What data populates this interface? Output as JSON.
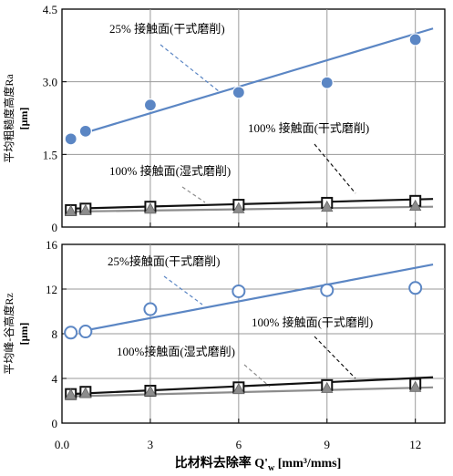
{
  "figure": {
    "xlabel": "比材料去除率  Q'w [mm³/mms]",
    "xlabel_main": "比材料去除率  Q'",
    "xlabel_sub": "w",
    "xlabel_unit": " [mm³/mms]"
  },
  "colors": {
    "blue": "#5b86c4",
    "black": "#111111",
    "gray": "#8c8c8c"
  },
  "chart_data": [
    {
      "type": "line",
      "panel": "top",
      "ylabel": "平均粗糙度高度Ra [μm]",
      "ylabel_text": "平均粗糙度高度Ra",
      "ylabel_unit": "[μm]",
      "xlim": [
        0,
        13
      ],
      "ylim": [
        0,
        4.5
      ],
      "xticks": [
        0,
        3,
        6,
        9,
        12
      ],
      "xtick_labels": [
        "0.0",
        "3",
        "6",
        "9",
        "12"
      ],
      "yticks": [
        0,
        1.5,
        3.0,
        4.5
      ],
      "ytick_labels": [
        "0",
        "1.5",
        "3.0",
        "4.5"
      ],
      "grid": true,
      "series": [
        {
          "name": "25% 接触面(干式磨削)",
          "marker": "circle-filled",
          "color": "blue",
          "x": [
            0.3,
            0.8,
            3,
            6,
            9,
            12
          ],
          "y": [
            1.82,
            1.98,
            2.52,
            2.78,
            2.98,
            3.87
          ],
          "fit": [
            [
              0.8,
              1.95
            ],
            [
              12.6,
              4.1
            ]
          ]
        },
        {
          "name": "100% 接触面(干式磨削)",
          "marker": "square",
          "color": "black",
          "x": [
            0.3,
            0.8,
            3,
            6,
            9,
            12
          ],
          "y": [
            0.35,
            0.38,
            0.42,
            0.46,
            0.5,
            0.54
          ],
          "fit": [
            [
              0.3,
              0.38
            ],
            [
              12.6,
              0.58
            ]
          ]
        },
        {
          "name": "100% 接触面(湿式磨削)",
          "marker": "triangle",
          "color": "gray",
          "x": [
            0.3,
            0.8,
            3,
            6,
            9,
            12
          ],
          "y": [
            0.32,
            0.34,
            0.37,
            0.38,
            0.41,
            0.43
          ],
          "fit": [
            [
              0.3,
              0.32
            ],
            [
              12.6,
              0.42
            ]
          ]
        }
      ],
      "annotations": [
        {
          "text": "25% 接触面(干式磨削)",
          "series": 0
        },
        {
          "text": "100% 接触面(干式磨削)",
          "series": 1
        },
        {
          "text": "100% 接触面(湿式磨削)",
          "series": 2
        }
      ]
    },
    {
      "type": "line",
      "panel": "bottom",
      "ylabel": "平均峰-谷高度Rz [μm]",
      "ylabel_text": "平均峰-谷高度Rz",
      "ylabel_unit": "[μm]",
      "xlim": [
        0,
        13
      ],
      "ylim": [
        0,
        16
      ],
      "xticks": [
        0,
        3,
        6,
        9,
        12
      ],
      "xtick_labels": [
        "0.0",
        "3",
        "6",
        "9",
        "12"
      ],
      "yticks": [
        0,
        4,
        8,
        12,
        16
      ],
      "ytick_labels": [
        "0",
        "4",
        "8",
        "12",
        "16"
      ],
      "grid": true,
      "series": [
        {
          "name": "25%接触面(干式磨削)",
          "marker": "circle-open",
          "color": "blue",
          "x": [
            0.3,
            0.8,
            3,
            6,
            9,
            12
          ],
          "y": [
            8.1,
            8.2,
            10.2,
            11.8,
            11.9,
            12.1
          ],
          "fit": [
            [
              0.8,
              8.3
            ],
            [
              12.6,
              14.2
            ]
          ]
        },
        {
          "name": "100% 接触面(干式磨削)",
          "marker": "square",
          "color": "black",
          "x": [
            0.3,
            0.8,
            3,
            6,
            9,
            12
          ],
          "y": [
            2.6,
            2.8,
            2.9,
            3.2,
            3.4,
            3.5
          ],
          "fit": [
            [
              0.3,
              2.6
            ],
            [
              12.6,
              4.1
            ]
          ]
        },
        {
          "name": "100%接触面(湿式磨削)",
          "marker": "triangle",
          "color": "gray",
          "x": [
            0.3,
            0.8,
            3,
            6,
            9,
            12
          ],
          "y": [
            2.5,
            2.65,
            2.8,
            3.0,
            3.1,
            3.2
          ],
          "fit": [
            [
              0.3,
              2.4
            ],
            [
              12.6,
              3.2
            ]
          ]
        }
      ],
      "annotations": [
        {
          "text": "25%接触面(干式磨削)",
          "series": 0
        },
        {
          "text": "100% 接触面(干式磨削)",
          "series": 1
        },
        {
          "text": "100%接触面(湿式磨削)",
          "series": 2
        }
      ]
    }
  ]
}
